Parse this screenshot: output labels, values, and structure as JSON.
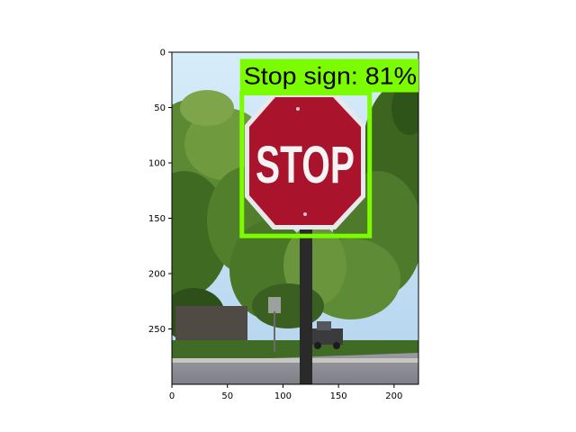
{
  "image": {
    "width": 222,
    "height": 300,
    "sign_text": "STOP"
  },
  "x_ticks": [
    {
      "value": 0,
      "label": "0"
    },
    {
      "value": 50,
      "label": "50"
    },
    {
      "value": 100,
      "label": "100"
    },
    {
      "value": 150,
      "label": "150"
    },
    {
      "value": 200,
      "label": "200"
    }
  ],
  "y_ticks": [
    {
      "value": 0,
      "label": "0"
    },
    {
      "value": 50,
      "label": "50"
    },
    {
      "value": 100,
      "label": "100"
    },
    {
      "value": 150,
      "label": "150"
    },
    {
      "value": 200,
      "label": "200"
    },
    {
      "value": 250,
      "label": "250"
    }
  ],
  "detection": {
    "label": "Stop sign: 81%",
    "color": "#7cfc00",
    "box": {
      "x_min": 63,
      "y_min": 37,
      "x_max": 178,
      "y_max": 166
    }
  },
  "colors": {
    "sky": "#c4e0f4",
    "foliage": "#4d7a2a",
    "sign_red": "#a9132b",
    "road": "#8d8d96"
  }
}
